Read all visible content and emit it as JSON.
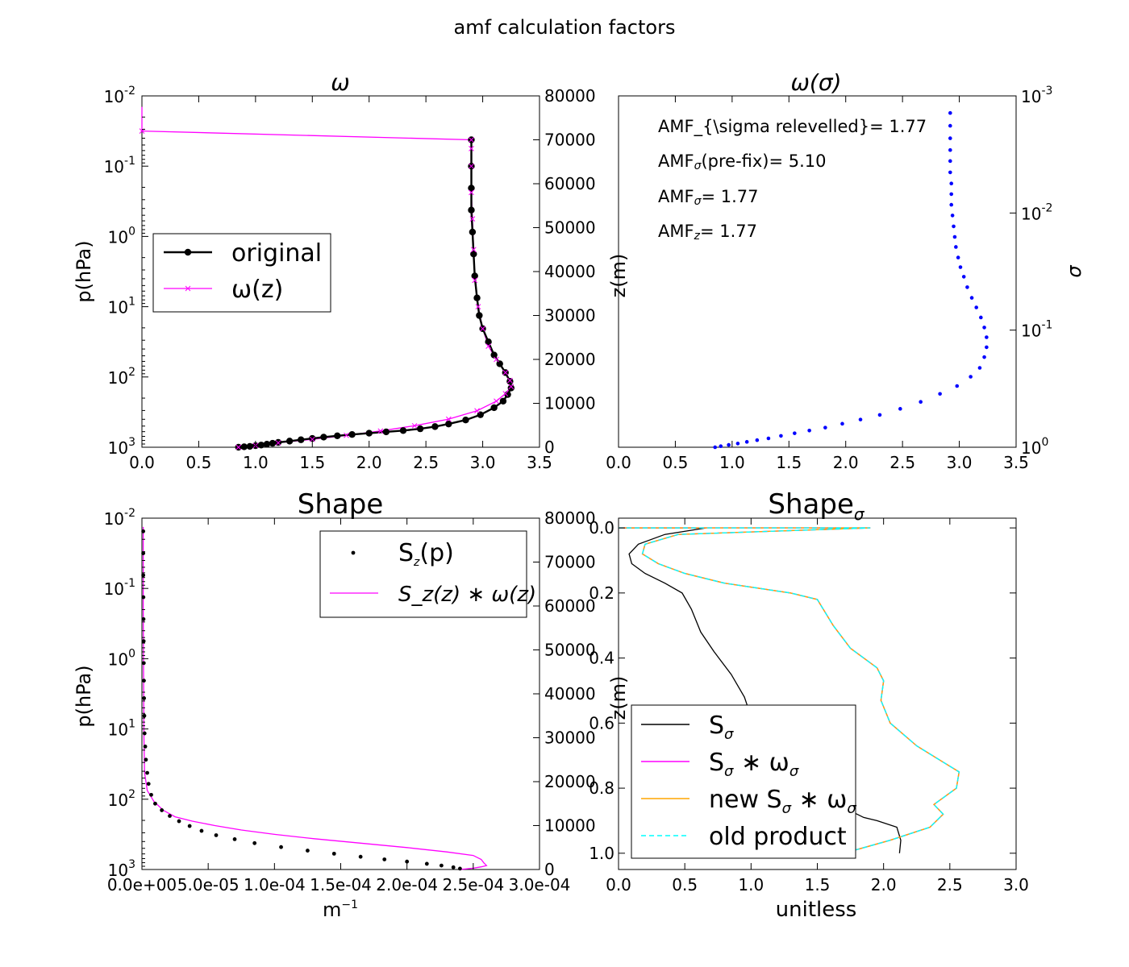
{
  "figure": {
    "title": "amf calculation factors"
  },
  "colors": {
    "black": "#000000",
    "magenta": "#ff00ff",
    "blue": "#0000ff",
    "orange": "#ffa500",
    "cyan": "#00ffff"
  },
  "chart_data": [
    {
      "id": "omega",
      "type": "line",
      "title": "ω",
      "ylabel": "p(hPa)",
      "xlabel": "",
      "xlim": [
        0,
        3.5
      ],
      "yscale": "log",
      "ylim_inverted": [
        1000,
        0.01
      ],
      "xticks": [
        "0.0",
        "0.5",
        "1.0",
        "1.5",
        "2.0",
        "2.5",
        "3.0",
        "3.5"
      ],
      "yticks": [
        {
          "base": "10",
          "exp": "-2"
        },
        {
          "base": "10",
          "exp": "-1"
        },
        {
          "base": "10",
          "exp": "0"
        },
        {
          "base": "10",
          "exp": "1"
        },
        {
          "base": "10",
          "exp": "2"
        },
        {
          "base": "10",
          "exp": "3"
        }
      ],
      "y2ticks": [
        "0",
        "10000",
        "20000",
        "30000",
        "40000",
        "50000",
        "60000",
        "70000",
        "80000"
      ],
      "y2lim": [
        0,
        80000
      ],
      "legend": {
        "placement": "center-left",
        "entries": [
          {
            "label": "original"
          },
          {
            "label": "ω(z)"
          }
        ]
      },
      "series": [
        {
          "name": "original",
          "color": "#000000",
          "marker": "o",
          "axis": "z",
          "x": [
            0.85,
            0.9,
            0.95,
            1.0,
            1.05,
            1.1,
            1.15,
            1.2,
            1.3,
            1.4,
            1.5,
            1.6,
            1.72,
            1.85,
            2.0,
            2.15,
            2.3,
            2.45,
            2.58,
            2.7,
            2.85,
            2.98,
            3.1,
            3.18,
            3.22,
            3.25,
            3.24,
            3.2,
            3.15,
            3.1,
            3.05,
            3.0,
            2.97,
            2.95,
            2.93,
            2.92,
            2.91,
            2.9,
            2.9,
            2.9,
            2.9
          ],
          "y": [
            0,
            100,
            200,
            350,
            500,
            700,
            900,
            1100,
            1400,
            1700,
            2000,
            2300,
            2600,
            2900,
            3200,
            3500,
            3800,
            4200,
            4700,
            5300,
            6200,
            7400,
            9000,
            10500,
            12000,
            13500,
            15000,
            17000,
            19000,
            21000,
            24000,
            27000,
            30000,
            34000,
            39000,
            44000,
            49000,
            54000,
            59000,
            64000,
            70000
          ]
        },
        {
          "name": "ω(z)",
          "color": "#ff00ff",
          "marker": "x",
          "axis": "z",
          "x": [
            0.85,
            1.0,
            1.2,
            1.5,
            1.8,
            2.1,
            2.4,
            2.7,
            2.95,
            3.12,
            3.2,
            3.25,
            3.24,
            3.2,
            3.12,
            3.05,
            3.0,
            2.96,
            2.93,
            2.92,
            2.91,
            2.9,
            2.9,
            2.9,
            2.9,
            0.0
          ],
          "y": [
            0,
            400,
            1000,
            1800,
            2700,
            3700,
            4900,
            6400,
            8300,
            10500,
            12200,
            13800,
            15200,
            17000,
            20000,
            23000,
            27000,
            32000,
            38000,
            45000,
            52000,
            58000,
            64000,
            68000,
            70000,
            72000
          ]
        },
        {
          "name": "ω(z)-top",
          "color": "#ff00ff",
          "marker": "x",
          "axis": "z",
          "x": [
            0.0,
            0.0
          ],
          "y": [
            72000,
            77500
          ]
        }
      ]
    },
    {
      "id": "omega-sigma",
      "type": "scatter",
      "title": "ω(σ)",
      "ylabel": "z(m)",
      "y2label": "σ",
      "xlim": [
        0,
        3.5
      ],
      "xticks": [
        "0.0",
        "0.5",
        "1.0",
        "1.5",
        "2.0",
        "2.5",
        "3.0",
        "3.5"
      ],
      "y2scale": "log",
      "y2ticks": [
        {
          "base": "10",
          "exp": "-3"
        },
        {
          "base": "10",
          "exp": "-2"
        },
        {
          "base": "10",
          "exp": "-1"
        },
        {
          "base": "10",
          "exp": "0"
        }
      ],
      "annotations": [
        {
          "text": "AMF_{\\sigma relevelled}= 1.77"
        },
        {
          "prefix": "AMF",
          "sub": "σ",
          "suffix": "(pre-fix)= 5.10"
        },
        {
          "prefix": "AMF",
          "sub": "σ",
          "suffix": "= 1.77"
        },
        {
          "prefix": "AMF",
          "sub": "z",
          "suffix": "= 1.77"
        }
      ],
      "series": [
        {
          "name": "",
          "color": "#0000ff",
          "marker": ".",
          "x": [
            0.85,
            0.9,
            0.97,
            1.05,
            1.13,
            1.22,
            1.32,
            1.43,
            1.55,
            1.68,
            1.82,
            1.97,
            2.13,
            2.3,
            2.48,
            2.66,
            2.83,
            2.98,
            3.1,
            3.18,
            3.22,
            3.24,
            3.24,
            3.22,
            3.19,
            3.15,
            3.11,
            3.07,
            3.04,
            3.01,
            2.99,
            2.97,
            2.96,
            2.95,
            2.94,
            2.93,
            2.93,
            2.93,
            2.92,
            2.92,
            2.92,
            2.92,
            2.92,
            2.92
          ],
          "y": [
            1.0,
            0.98,
            0.955,
            0.93,
            0.9,
            0.87,
            0.84,
            0.8,
            0.76,
            0.72,
            0.68,
            0.63,
            0.58,
            0.53,
            0.47,
            0.41,
            0.35,
            0.3,
            0.25,
            0.21,
            0.17,
            0.14,
            0.115,
            0.095,
            0.078,
            0.064,
            0.053,
            0.043,
            0.035,
            0.029,
            0.024,
            0.0195,
            0.016,
            0.013,
            0.0105,
            0.0085,
            0.0069,
            0.0056,
            0.0045,
            0.0036,
            0.0029,
            0.0023,
            0.0018,
            0.0014
          ]
        }
      ]
    },
    {
      "id": "shape",
      "type": "line",
      "title": "Shape",
      "ylabel": "p(hPa)",
      "xlabel": "m",
      "xlabel_sup": "−1",
      "xlim": [
        0,
        0.0003
      ],
      "xticks": [
        "0.0e+00",
        "5.0e-05",
        "1.0e-04",
        "1.5e-04",
        "2.0e-04",
        "2.5e-04",
        "3.0e-04"
      ],
      "yticks": [
        {
          "base": "10",
          "exp": "-2"
        },
        {
          "base": "10",
          "exp": "-1"
        },
        {
          "base": "10",
          "exp": "0"
        },
        {
          "base": "10",
          "exp": "1"
        },
        {
          "base": "10",
          "exp": "2"
        },
        {
          "base": "10",
          "exp": "3"
        }
      ],
      "y2ticks": [
        "0",
        "10000",
        "20000",
        "30000",
        "40000",
        "50000",
        "60000",
        "70000",
        "80000"
      ],
      "y2lim": [
        0,
        80000
      ],
      "legend": {
        "placement": "top-right",
        "entries": [
          {
            "label": "S",
            "sub": "z",
            "suffix": "(p)"
          },
          {
            "label": "S_z(z) ∗ ω(z)"
          }
        ]
      },
      "series": [
        {
          "name": "S_z(p)",
          "color": "#000000",
          "marker": ".",
          "x": [
            0.00024,
            0.000235,
            0.000226,
            0.000215,
            0.0002,
            0.000183,
            0.000165,
            0.000145,
            0.000125,
            0.000105,
            8.5e-05,
            7e-05,
            5.6e-05,
            4.5e-05,
            3.6e-05,
            2.8e-05,
            2.1e-05,
            1.5e-05,
            1e-05,
            7e-06,
            5e-06,
            4e-06,
            3e-06,
            2.5e-06,
            2e-06,
            1.8e-06,
            1.6e-06,
            1.5e-06,
            1.4e-06,
            1.3e-06,
            1.2e-06,
            1.1e-06,
            1e-06,
            1e-06,
            1e-06
          ],
          "y": [
            200,
            500,
            900,
            1300,
            1800,
            2300,
            2900,
            3600,
            4300,
            5100,
            6000,
            6900,
            7800,
            8800,
            9900,
            11000,
            12200,
            13500,
            15000,
            17000,
            19500,
            22000,
            25000,
            28000,
            31000,
            35000,
            39000,
            43000,
            47000,
            52000,
            57000,
            62000,
            67000,
            72000,
            77000
          ]
        },
        {
          "name": "S_z(z) ∗ ω(z)",
          "color": "#ff00ff",
          "marker": "",
          "x": [
            0.00024,
            0.00025,
            0.000256,
            0.00026,
            0.000258,
            0.000256,
            0.00025,
            0.00023,
            0.0002,
            0.000165,
            0.00013,
            0.0001,
            7.5e-05,
            5.5e-05,
            3.8e-05,
            2.5e-05,
            1.6e-05,
            9e-06,
            4e-06,
            2e-06,
            1.5e-06,
            1.2e-06,
            1e-06,
            1e-06
          ],
          "y": [
            0,
            300,
            600,
            900,
            1500,
            2300,
            3200,
            4000,
            5000,
            6000,
            7000,
            8000,
            9000,
            10000,
            11000,
            12000,
            13500,
            15500,
            18000,
            22000,
            30000,
            45000,
            60000,
            78000
          ]
        }
      ]
    },
    {
      "id": "shape-sigma",
      "type": "line",
      "title": "Shape",
      "title_sub": "σ",
      "ylabel": "z(m)",
      "xlabel": "unitless",
      "xlim": [
        0,
        3.0
      ],
      "ylim_inverted": [
        1.05,
        -0.03
      ],
      "xticks": [
        "0.0",
        "0.5",
        "1.0",
        "1.5",
        "2.0",
        "2.5",
        "3.0"
      ],
      "yticks": [
        "0.0",
        "0.2",
        "0.4",
        "0.6",
        "0.8",
        "1.0"
      ],
      "legend": {
        "placement": "lower-left",
        "entries": [
          {
            "label": "S",
            "sub": "σ",
            "suffix": ""
          },
          {
            "label": "S",
            "sub": "σ",
            "suffix": " ∗ ω",
            "sub2": "σ"
          },
          {
            "label": "new S",
            "sub": "σ",
            "suffix": " ∗ ω",
            "sub2": "σ"
          },
          {
            "label": "old product"
          }
        ]
      },
      "series": [
        {
          "name": "S_σ",
          "color": "#000000",
          "x": [
            0.0,
            0.66,
            0.35,
            0.15,
            0.08,
            0.1,
            0.2,
            0.35,
            0.48,
            0.55,
            0.62,
            0.72,
            0.85,
            0.95,
            1.0,
            1.05,
            1.15,
            1.3,
            1.5,
            1.7,
            1.85,
            1.95,
            2.1,
            2.13,
            2.12
          ],
          "y": [
            0.0,
            0.0,
            0.02,
            0.05,
            0.08,
            0.11,
            0.14,
            0.17,
            0.2,
            0.25,
            0.32,
            0.38,
            0.45,
            0.52,
            0.58,
            0.64,
            0.7,
            0.76,
            0.82,
            0.86,
            0.89,
            0.9,
            0.92,
            0.96,
            1.0
          ]
        },
        {
          "name": "S_σ ∗ ω_σ",
          "color": "#ff00ff",
          "x": [
            0.0,
            1.9,
            0.45,
            0.2,
            0.18,
            0.3,
            0.5,
            0.8,
            1.3,
            1.5,
            1.62,
            1.75,
            1.95,
            2.0,
            1.98,
            2.05,
            2.25,
            2.45,
            2.57,
            2.55,
            2.38,
            2.45,
            2.35,
            2.05,
            1.7
          ],
          "y": [
            0.0,
            0.0,
            0.02,
            0.05,
            0.08,
            0.11,
            0.14,
            0.17,
            0.2,
            0.22,
            0.3,
            0.37,
            0.43,
            0.47,
            0.53,
            0.6,
            0.67,
            0.72,
            0.75,
            0.8,
            0.85,
            0.88,
            0.92,
            0.96,
            1.0
          ]
        },
        {
          "name": "new S_σ ∗ ω_σ",
          "color": "#ffa500",
          "copyOf": 1
        },
        {
          "name": "old product",
          "color": "#00ffff",
          "dashed": true,
          "copyOf": 1
        }
      ]
    }
  ]
}
